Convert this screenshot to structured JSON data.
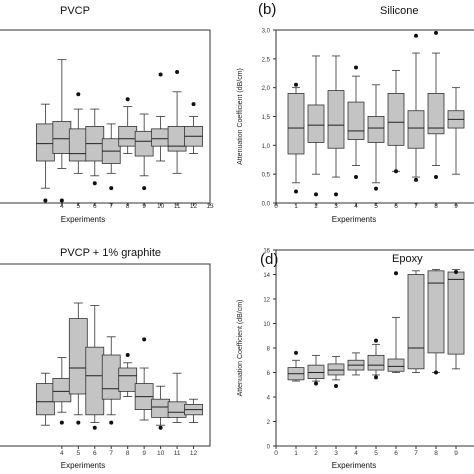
{
  "chart_data": [
    {
      "id": "a",
      "type": "box",
      "panel_label": "",
      "title": "PVCP",
      "xlabel": "Experiments",
      "ylabel": "",
      "xlim": [
        0,
        13
      ],
      "ylim": [
        0,
        3.5
      ],
      "xticks": [
        4,
        5,
        6,
        7,
        8,
        9,
        10,
        11,
        12,
        13
      ],
      "yticks": [],
      "boxes": [
        {
          "x": 3,
          "wl": 0.3,
          "q1": 0.85,
          "med": 1.2,
          "q3": 1.6,
          "wh": 2.0,
          "out": [
            0.05
          ]
        },
        {
          "x": 4,
          "wl": 0.7,
          "q1": 1.0,
          "med": 1.3,
          "q3": 1.65,
          "wh": 2.9,
          "out": [
            0.05
          ]
        },
        {
          "x": 5,
          "wl": 0.6,
          "q1": 0.85,
          "med": 1.0,
          "q3": 1.5,
          "wh": 1.9,
          "out": [
            2.2
          ]
        },
        {
          "x": 6,
          "wl": 0.55,
          "q1": 0.85,
          "med": 1.2,
          "q3": 1.55,
          "wh": 1.9,
          "out": [
            0.4
          ]
        },
        {
          "x": 7,
          "wl": 0.6,
          "q1": 0.8,
          "med": 1.05,
          "q3": 1.3,
          "wh": 1.6,
          "out": [
            0.3
          ]
        },
        {
          "x": 8,
          "wl": 1.0,
          "q1": 1.15,
          "med": 1.3,
          "q3": 1.55,
          "wh": 1.95,
          "out": [
            2.1
          ]
        },
        {
          "x": 9,
          "wl": 0.55,
          "q1": 0.95,
          "med": 1.25,
          "q3": 1.45,
          "wh": 1.8,
          "out": [
            0.3
          ]
        },
        {
          "x": 10,
          "wl": 0.85,
          "q1": 1.15,
          "med": 1.3,
          "q3": 1.5,
          "wh": 1.75,
          "out": [
            2.6
          ]
        },
        {
          "x": 11,
          "wl": 0.6,
          "q1": 1.05,
          "med": 1.15,
          "q3": 1.55,
          "wh": 2.25,
          "out": [
            2.65
          ]
        },
        {
          "x": 12,
          "wl": 1.0,
          "q1": 1.15,
          "med": 1.35,
          "q3": 1.55,
          "wh": 1.75,
          "out": [
            2.0
          ]
        }
      ]
    },
    {
      "id": "b",
      "type": "box",
      "panel_label": "(b)",
      "title": "Silicone",
      "xlabel": "Experiments",
      "ylabel": "Attenuation Coefficient (dB/cm)",
      "xlim": [
        0,
        10
      ],
      "ylim": [
        0,
        3.0
      ],
      "xticks": [
        0,
        1,
        2,
        3,
        4,
        5,
        6,
        7,
        8,
        9
      ],
      "yticks": [
        "0,0",
        "0,5",
        "1,0",
        "1,5",
        "2,0",
        "2,5",
        "3,0"
      ],
      "ytick_values": [
        0,
        0.5,
        1.0,
        1.5,
        2.0,
        2.5,
        3.0
      ],
      "boxes": [
        {
          "x": 1,
          "wl": 0.35,
          "q1": 0.85,
          "med": 1.3,
          "q3": 1.9,
          "wh": 2.0,
          "out": [
            0.2,
            2.05
          ]
        },
        {
          "x": 2,
          "wl": 0.5,
          "q1": 1.05,
          "med": 1.35,
          "q3": 1.7,
          "wh": 2.55,
          "out": [
            0.15
          ]
        },
        {
          "x": 3,
          "wl": 0.45,
          "q1": 0.95,
          "med": 1.35,
          "q3": 1.95,
          "wh": 2.55,
          "out": [
            0.15
          ]
        },
        {
          "x": 4,
          "wl": 0.65,
          "q1": 1.1,
          "med": 1.25,
          "q3": 1.75,
          "wh": 2.2,
          "out": [
            0.45,
            2.35
          ]
        },
        {
          "x": 5,
          "wl": 0.35,
          "q1": 1.05,
          "med": 1.3,
          "q3": 1.5,
          "wh": 2.05,
          "out": [
            0.25
          ]
        },
        {
          "x": 6,
          "wl": 0.55,
          "q1": 1.0,
          "med": 1.4,
          "q3": 1.9,
          "wh": 2.3,
          "out": [
            0.55
          ]
        },
        {
          "x": 7,
          "wl": 0.45,
          "q1": 0.95,
          "med": 1.3,
          "q3": 1.6,
          "wh": 2.6,
          "out": [
            0.4,
            2.9
          ]
        },
        {
          "x": 8,
          "wl": 0.65,
          "q1": 1.2,
          "med": 1.3,
          "q3": 1.9,
          "wh": 2.6,
          "out": [
            0.45,
            2.95
          ]
        },
        {
          "x": 9,
          "wl": 0.5,
          "q1": 1.3,
          "med": 1.45,
          "q3": 1.6,
          "wh": 2.0,
          "out": []
        }
      ]
    },
    {
      "id": "c",
      "type": "box",
      "panel_label": "",
      "title": "PVCP + 1% graphite",
      "xlabel": "Experiments",
      "ylabel": "",
      "xlim": [
        0,
        13
      ],
      "ylim": [
        0,
        3.5
      ],
      "xticks": [
        4,
        5,
        6,
        7,
        8,
        9,
        10,
        11,
        12
      ],
      "yticks": [],
      "boxes": [
        {
          "x": 3,
          "wl": 0.4,
          "q1": 0.6,
          "med": 0.85,
          "q3": 1.2,
          "wh": 1.4,
          "out": []
        },
        {
          "x": 4,
          "wl": 0.65,
          "q1": 0.85,
          "med": 1.05,
          "q3": 1.3,
          "wh": 1.7,
          "out": [
            0.45
          ]
        },
        {
          "x": 5,
          "wl": 0.6,
          "q1": 1.0,
          "med": 1.5,
          "q3": 2.45,
          "wh": 2.75,
          "out": [
            0.45
          ]
        },
        {
          "x": 6,
          "wl": 0.45,
          "q1": 0.6,
          "med": 1.35,
          "q3": 1.9,
          "wh": 2.7,
          "out": [
            0.35
          ]
        },
        {
          "x": 7,
          "wl": 0.6,
          "q1": 0.9,
          "med": 1.1,
          "q3": 1.75,
          "wh": 2.1,
          "out": [
            0.45
          ]
        },
        {
          "x": 8,
          "wl": 0.95,
          "q1": 1.05,
          "med": 1.35,
          "q3": 1.5,
          "wh": 1.6,
          "out": [
            1.75
          ]
        },
        {
          "x": 9,
          "wl": 0.5,
          "q1": 0.7,
          "med": 0.95,
          "q3": 1.2,
          "wh": 1.5,
          "out": [
            2.05
          ]
        },
        {
          "x": 10,
          "wl": 0.4,
          "q1": 0.55,
          "med": 0.75,
          "q3": 0.9,
          "wh": 1.15,
          "out": [
            0.35
          ]
        },
        {
          "x": 11,
          "wl": 0.45,
          "q1": 0.55,
          "med": 0.65,
          "q3": 0.85,
          "wh": 1.4,
          "out": []
        },
        {
          "x": 12,
          "wl": 0.45,
          "q1": 0.6,
          "med": 0.7,
          "q3": 0.8,
          "wh": 0.9,
          "out": []
        }
      ]
    },
    {
      "id": "d",
      "type": "box",
      "panel_label": "(d)",
      "title": "Epoxy",
      "xlabel": "Experiments",
      "ylabel": "Attenuation Coefficient (dB/cm)",
      "xlim": [
        0,
        10
      ],
      "ylim": [
        0,
        16
      ],
      "xticks": [
        0,
        1,
        2,
        3,
        4,
        5,
        6,
        7,
        8,
        9
      ],
      "yticks": [
        "0",
        "2",
        "4",
        "6",
        "8",
        "10",
        "12",
        "14",
        "16"
      ],
      "ytick_values": [
        0,
        2,
        4,
        6,
        8,
        10,
        12,
        14,
        16
      ],
      "boxes": [
        {
          "x": 1,
          "wl": 5.3,
          "q1": 5.4,
          "med": 5.9,
          "q3": 6.4,
          "wh": 7.0,
          "out": [
            7.6
          ]
        },
        {
          "x": 2,
          "wl": 5.3,
          "q1": 5.5,
          "med": 6.0,
          "q3": 6.6,
          "wh": 7.4,
          "out": [
            5.1
          ]
        },
        {
          "x": 3,
          "wl": 5.4,
          "q1": 5.8,
          "med": 6.2,
          "q3": 6.7,
          "wh": 7.3,
          "out": [
            4.9
          ]
        },
        {
          "x": 4,
          "wl": 5.8,
          "q1": 6.2,
          "med": 6.6,
          "q3": 7.0,
          "wh": 7.6,
          "out": []
        },
        {
          "x": 5,
          "wl": 5.8,
          "q1": 6.2,
          "med": 6.6,
          "q3": 7.4,
          "wh": 8.3,
          "out": [
            5.6,
            8.6
          ]
        },
        {
          "x": 6,
          "wl": 6.0,
          "q1": 6.1,
          "med": 6.5,
          "q3": 7.1,
          "wh": 10.5,
          "out": [
            14.1
          ]
        },
        {
          "x": 7,
          "wl": 6.0,
          "q1": 6.3,
          "med": 8.0,
          "q3": 14.0,
          "wh": 14.3,
          "out": []
        },
        {
          "x": 8,
          "wl": 6.0,
          "q1": 7.6,
          "med": 13.3,
          "q3": 14.3,
          "wh": 14.4,
          "out": [
            6.0
          ]
        },
        {
          "x": 9,
          "wl": 6.3,
          "q1": 7.5,
          "med": 13.6,
          "q3": 14.2,
          "wh": 14.4,
          "out": [
            14.2
          ]
        }
      ]
    }
  ]
}
